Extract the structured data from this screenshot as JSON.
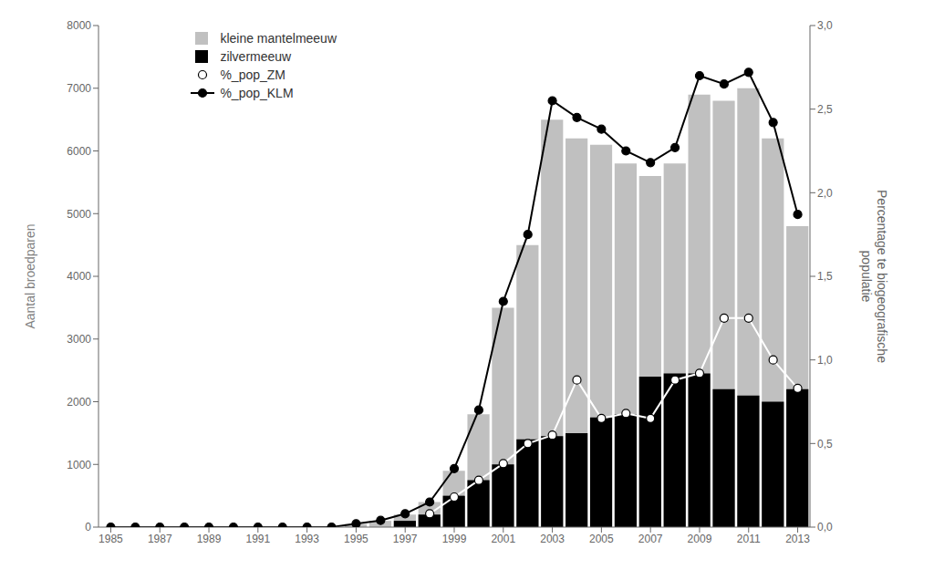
{
  "chart_data": {
    "type": "bar",
    "x": [
      1985,
      1986,
      1987,
      1988,
      1989,
      1990,
      1991,
      1992,
      1993,
      1994,
      1995,
      1996,
      1997,
      1998,
      1999,
      2000,
      2001,
      2002,
      2003,
      2004,
      2005,
      2006,
      2007,
      2008,
      2009,
      2010,
      2011,
      2012,
      2013
    ],
    "xlim": [
      1984.5,
      2013.5
    ],
    "xticks": [
      1985,
      1987,
      1989,
      1991,
      1993,
      1995,
      1997,
      1999,
      2001,
      2003,
      2005,
      2007,
      2009,
      2011,
      2013
    ],
    "ylabel": "Aantal broedparen",
    "y2label": "Percentage te biogeografische\npopulatie",
    "ylim": [
      0,
      8000
    ],
    "yticks": [
      0,
      1000,
      2000,
      3000,
      4000,
      5000,
      6000,
      7000,
      8000
    ],
    "y2lim": [
      0.0,
      3.0
    ],
    "y2ticks": [
      {
        "value": 0.0,
        "label": "0,0"
      },
      {
        "value": 0.5,
        "label": "0,5"
      },
      {
        "value": 1.0,
        "label": "1,0"
      },
      {
        "value": 1.5,
        "label": "1,5"
      },
      {
        "value": 2.0,
        "label": "2,0"
      },
      {
        "value": 2.5,
        "label": "2,5"
      },
      {
        "value": 3.0,
        "label": "3,0"
      }
    ],
    "grid": false,
    "legend": "upper left",
    "series": [
      {
        "name": "kleine mantelmeeuw",
        "type": "bar",
        "color": "#c0c0c0",
        "values": [
          0,
          0,
          0,
          0,
          0,
          0,
          0,
          0,
          0,
          0,
          50,
          100,
          200,
          400,
          900,
          1800,
          3500,
          4500,
          6500,
          6200,
          6100,
          5800,
          5600,
          5800,
          6900,
          6800,
          7000,
          6200,
          4800
        ]
      },
      {
        "name": "zilvermeeuw",
        "type": "bar",
        "color": "#000000",
        "values": [
          0,
          0,
          0,
          0,
          0,
          0,
          0,
          0,
          0,
          0,
          0,
          0,
          100,
          200,
          500,
          750,
          1000,
          1400,
          1450,
          1500,
          1750,
          1800,
          2400,
          2450,
          2450,
          2200,
          2100,
          2000,
          2200
        ]
      },
      {
        "name": "%_pop_ZM",
        "type": "line",
        "axis": "y2",
        "color": "#ffffff",
        "marker": "circle",
        "values": [
          null,
          null,
          null,
          null,
          null,
          null,
          null,
          null,
          null,
          null,
          null,
          null,
          null,
          0.08,
          0.18,
          0.28,
          0.38,
          0.5,
          0.55,
          0.88,
          0.65,
          0.68,
          0.65,
          0.88,
          0.92,
          1.25,
          1.25,
          1.0,
          0.83
        ]
      },
      {
        "name": "%_pop_KLM",
        "type": "line",
        "axis": "y2",
        "color": "#000000",
        "marker": "circle",
        "values": [
          0.0,
          0.0,
          0.0,
          0.0,
          0.0,
          0.0,
          0.0,
          0.0,
          0.0,
          0.0,
          0.02,
          0.04,
          0.08,
          0.15,
          0.35,
          0.7,
          1.35,
          1.75,
          2.55,
          2.45,
          2.38,
          2.25,
          2.18,
          2.27,
          2.7,
          2.65,
          2.72,
          2.42,
          1.87
        ]
      }
    ]
  }
}
